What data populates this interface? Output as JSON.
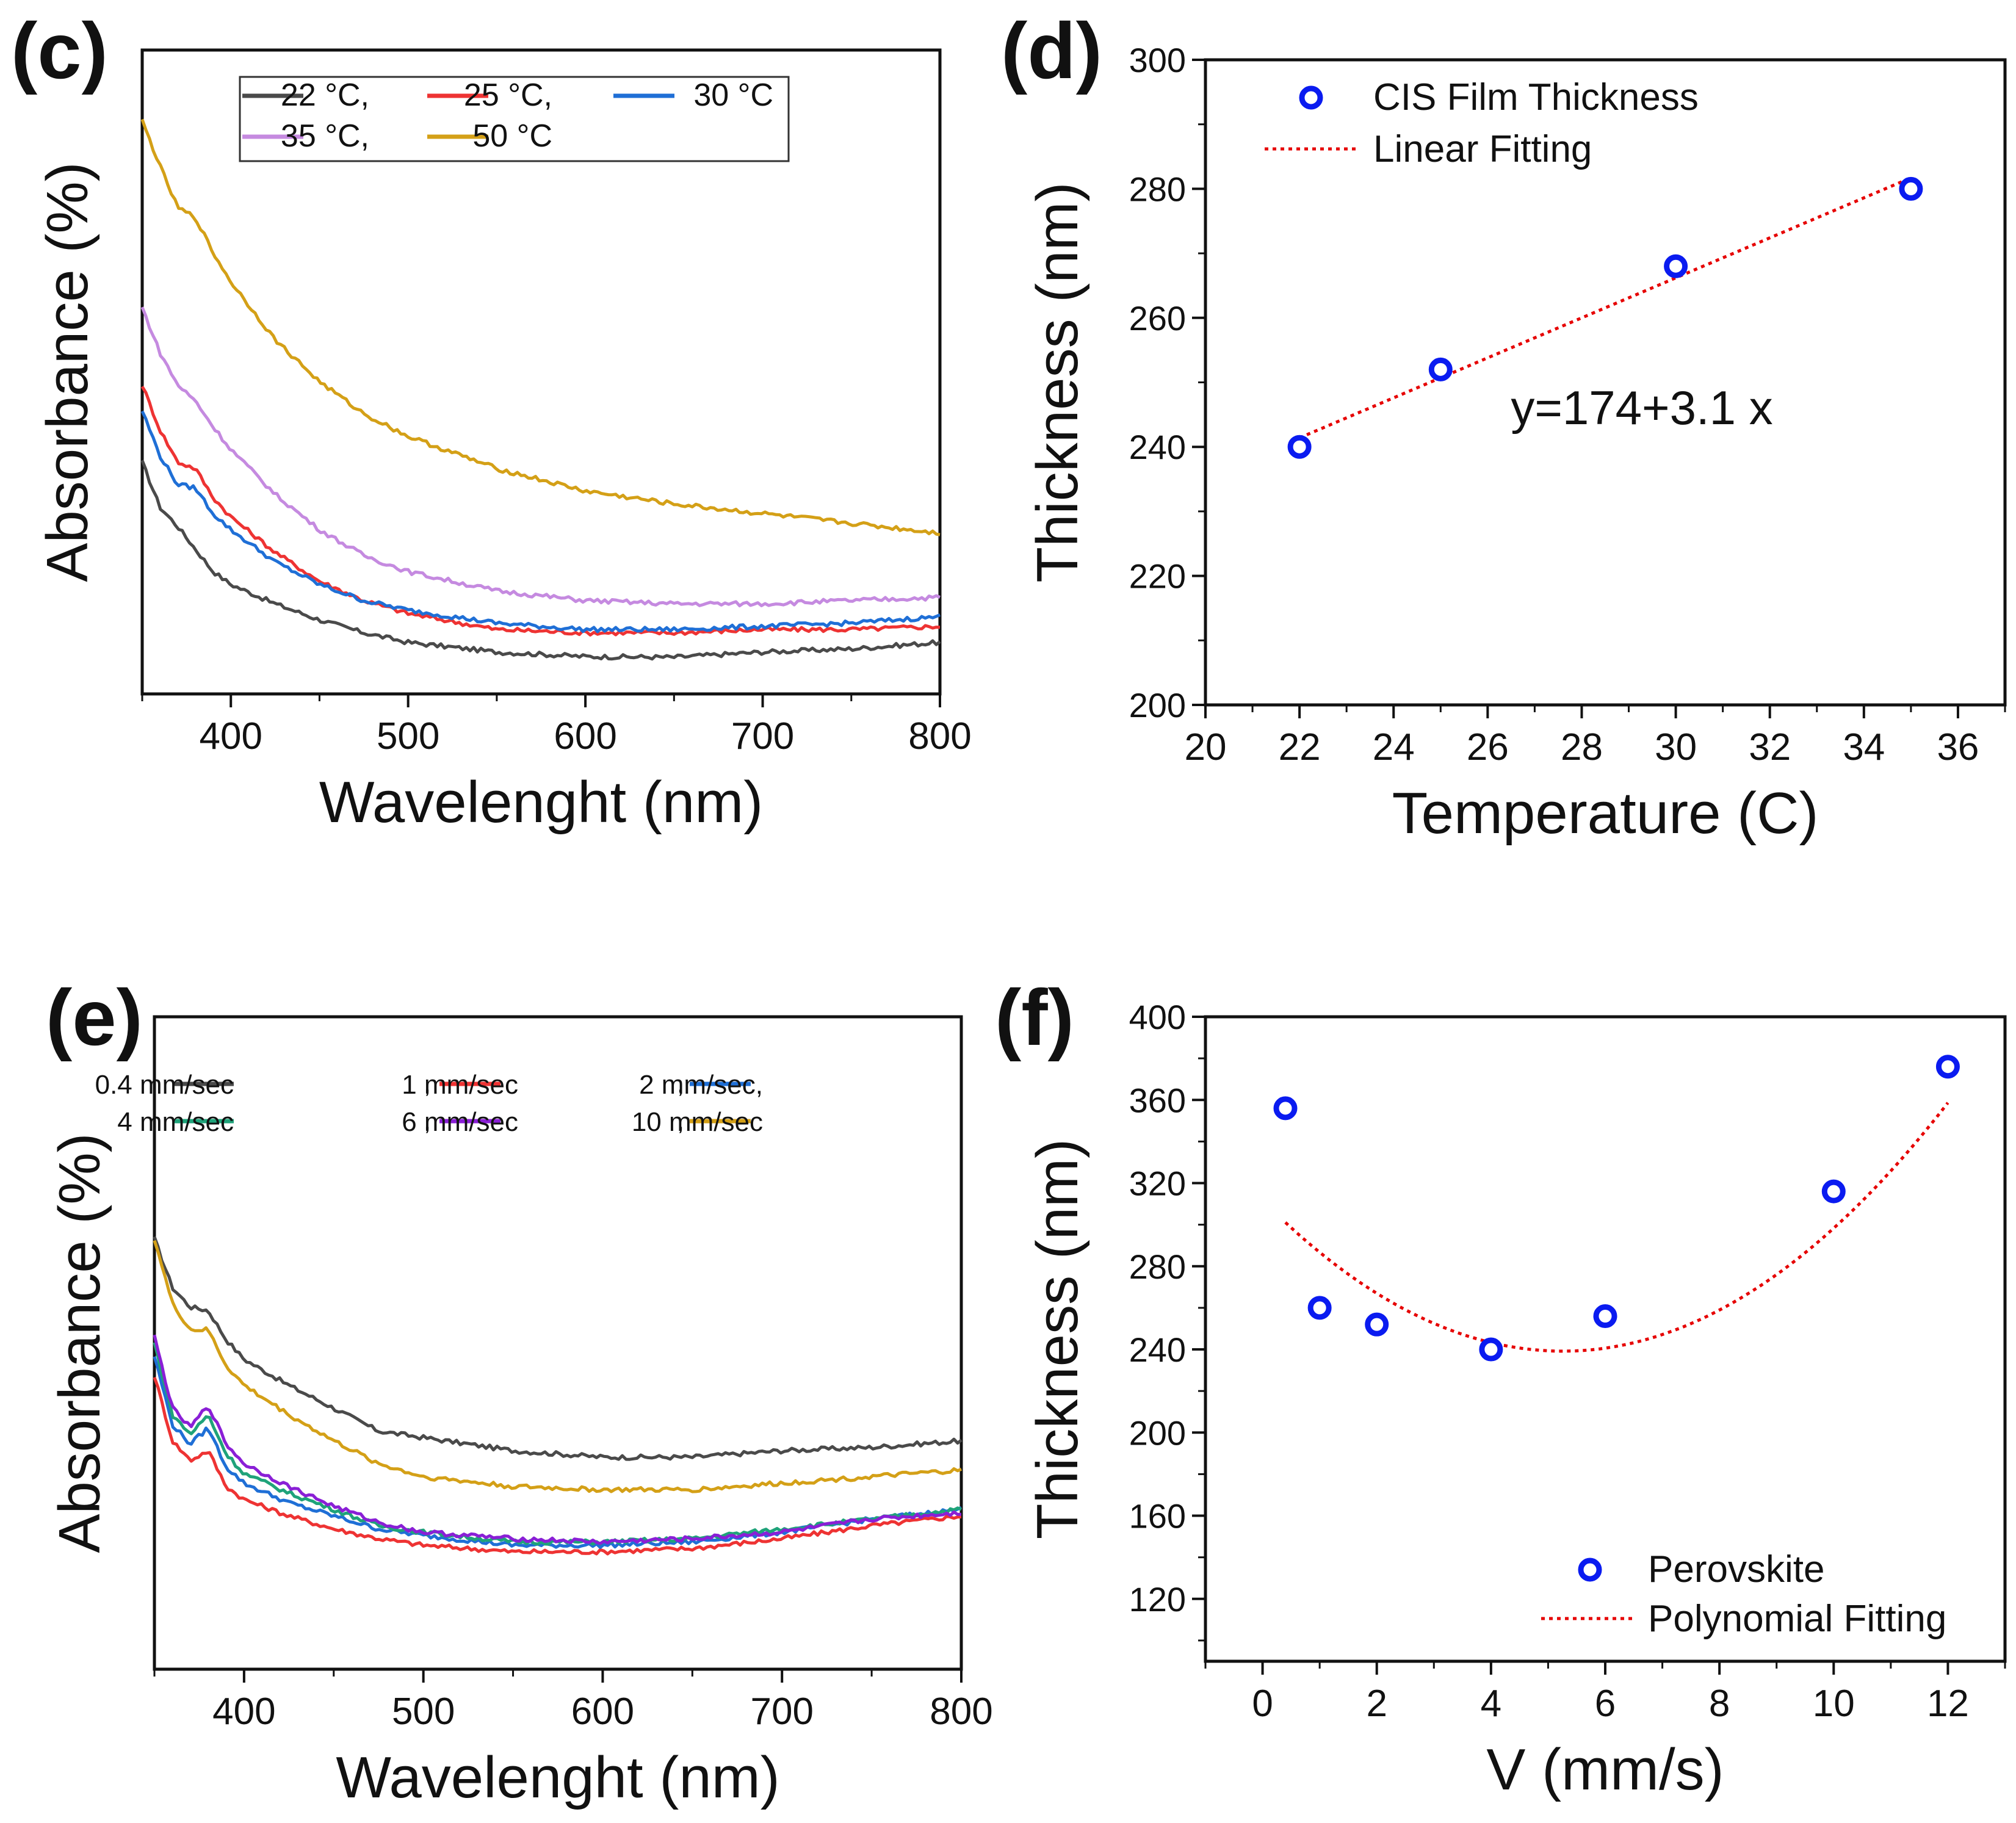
{
  "figure": {
    "panels": [
      "(c)",
      "(d)",
      "(e)",
      "(f)"
    ]
  },
  "chart_data": [
    {
      "panel": "(c)",
      "type": "line",
      "title": "",
      "xlabel": "Wavelenght (nm)",
      "ylabel": "Absorbance (%)",
      "xlim": [
        350,
        800
      ],
      "ylim": [
        0,
        100
      ],
      "x_ticks": [
        400,
        500,
        600,
        700,
        800
      ],
      "y_ticks_shown": false,
      "grid": false,
      "legend_position": "top-center",
      "legend_rows": [
        [
          {
            "label": "22 °C,",
            "series": 0
          },
          {
            "label": "25 °C,",
            "series": 1
          },
          {
            "label": "30 °C",
            "series": 2
          }
        ],
        [
          {
            "label": "35 °C,",
            "series": 3
          },
          {
            "label": "50 °C",
            "series": 4
          }
        ]
      ],
      "x": [
        350,
        360,
        370,
        380,
        390,
        400,
        425,
        450,
        475,
        500,
        550,
        600,
        650,
        700,
        750,
        800
      ],
      "series": [
        {
          "name": "22 °C",
          "color": "#4a4a4a",
          "values": [
            36.0,
            29.0,
            26.0,
            22.5,
            19.0,
            17.0,
            14.0,
            11.5,
            9.5,
            8.0,
            6.5,
            5.8,
            5.7,
            6.5,
            7.0,
            8.0
          ]
        },
        {
          "name": "25 °C",
          "color": "#ee3333",
          "values": [
            48.0,
            41.0,
            36.0,
            35.0,
            30.5,
            27.5,
            22.0,
            17.5,
            14.5,
            12.5,
            10.0,
            9.5,
            9.5,
            10.0,
            10.0,
            10.5
          ]
        },
        {
          "name": "30 °C",
          "color": "#1f6fd6",
          "values": [
            44.0,
            37.0,
            32.5,
            32.0,
            28.0,
            25.5,
            20.5,
            17.0,
            14.5,
            13.0,
            11.0,
            10.0,
            10.0,
            10.5,
            11.0,
            12.0
          ]
        },
        {
          "name": "35 °C",
          "color": "#c58ae0",
          "values": [
            60.0,
            53.0,
            48.0,
            45.5,
            41.5,
            38.0,
            31.0,
            25.5,
            21.5,
            19.0,
            16.0,
            14.5,
            14.0,
            14.0,
            14.5,
            15.0
          ]
        },
        {
          "name": "50 °C",
          "color": "#d4a017",
          "values": [
            89.0,
            82.0,
            75.5,
            74.0,
            68.5,
            64.0,
            55.0,
            48.5,
            43.5,
            40.0,
            35.0,
            31.5,
            29.5,
            28.0,
            26.5,
            25.0
          ]
        }
      ]
    },
    {
      "panel": "(d)",
      "type": "scatter",
      "title": "",
      "xlabel": "Temperature (C)",
      "ylabel": "Thickness (nm)",
      "xlim": [
        20,
        37
      ],
      "ylim": [
        200,
        300
      ],
      "x_ticks": [
        20,
        22,
        24,
        26,
        28,
        30,
        32,
        34,
        36
      ],
      "y_ticks": [
        200,
        220,
        240,
        260,
        280,
        300
      ],
      "grid": false,
      "legend_position": "top-left",
      "points": {
        "name": "CIS Film Thickness",
        "color": "#0a1bf0",
        "x": [
          22,
          25,
          30,
          35
        ],
        "y": [
          240,
          252,
          268,
          280
        ]
      },
      "fit": {
        "name": "Linear Fitting",
        "color": "#e60000",
        "style": "dotted",
        "x": [
          22,
          35
        ],
        "y": [
          241.4,
          281.7
        ]
      },
      "annotation": "y=174+3.1 x"
    },
    {
      "panel": "(e)",
      "type": "line",
      "title": "",
      "xlabel": "Wavelenght (nm)",
      "ylabel": "Absorbance (%)",
      "xlim": [
        350,
        800
      ],
      "ylim": [
        0,
        100
      ],
      "x_ticks": [
        400,
        500,
        600,
        700,
        800
      ],
      "y_ticks_shown": false,
      "grid": false,
      "legend_position": "top",
      "legend_rows": [
        [
          {
            "label": "0.4 mm/sec",
            "series": 0
          },
          {
            "label": ",",
            "series": null
          },
          {
            "label": "1 mm/sec",
            "series": 1
          },
          {
            "label": ",",
            "series": null
          },
          {
            "label": "2 mm/sec,",
            "series": 2
          }
        ],
        [
          {
            "label": "4 mm/sec",
            "series": 3
          },
          {
            "label": ",",
            "series": null
          },
          {
            "label": "6 mm/sec",
            "series": 4
          },
          {
            "label": ",",
            "series": null
          },
          {
            "label": "10 mm/sec",
            "series": 5
          }
        ]
      ],
      "x": [
        350,
        360,
        370,
        380,
        390,
        400,
        425,
        450,
        475,
        500,
        550,
        600,
        650,
        700,
        750,
        800
      ],
      "series": [
        {
          "name": "0.4 mm/sec",
          "color": "#4a4a4a",
          "values": [
            66.0,
            58.5,
            55.5,
            55.0,
            50.5,
            47.5,
            43.5,
            40.0,
            36.5,
            35.5,
            33.5,
            32.5,
            32.5,
            33.5,
            34.0,
            35.0
          ]
        },
        {
          "name": "1 mm/sec",
          "color": "#ee3333",
          "values": [
            45.0,
            35.0,
            32.0,
            33.5,
            28.0,
            26.0,
            23.5,
            21.5,
            20.0,
            19.0,
            18.0,
            18.0,
            18.5,
            20.0,
            22.0,
            23.5
          ]
        },
        {
          "name": "2 mm/sec,",
          "color": "#1f6fd6",
          "values": [
            48.0,
            37.5,
            34.5,
            37.0,
            31.0,
            28.5,
            25.5,
            23.5,
            21.5,
            20.5,
            19.0,
            19.0,
            19.5,
            21.0,
            23.0,
            24.5
          ]
        },
        {
          "name": "4 mm/sec",
          "color": "#1fa37a",
          "values": [
            50.0,
            39.0,
            36.0,
            39.0,
            33.0,
            30.0,
            27.0,
            24.5,
            22.0,
            21.0,
            19.5,
            19.5,
            20.0,
            21.5,
            23.0,
            24.5
          ]
        },
        {
          "name": "6 mm/sec",
          "color": "#8a1fd6",
          "values": [
            51.0,
            40.0,
            37.0,
            40.5,
            34.5,
            31.5,
            28.0,
            25.0,
            22.5,
            21.0,
            20.0,
            19.5,
            20.0,
            21.0,
            23.0,
            24.0
          ]
        },
        {
          "name": "10 mm/sec",
          "color": "#d4a017",
          "values": [
            66.0,
            56.0,
            52.0,
            52.0,
            46.5,
            43.5,
            39.0,
            35.0,
            31.5,
            29.5,
            28.0,
            27.5,
            27.5,
            28.5,
            29.5,
            30.5
          ]
        }
      ]
    },
    {
      "panel": "(f)",
      "type": "scatter",
      "title": "",
      "xlabel": "V (mm/s)",
      "ylabel": "Thickness (nm)",
      "xlim": [
        -1,
        13
      ],
      "ylim": [
        90,
        400
      ],
      "x_ticks": [
        0,
        2,
        4,
        6,
        8,
        10,
        12
      ],
      "y_ticks": [
        120,
        160,
        200,
        240,
        280,
        320,
        360,
        400
      ],
      "grid": false,
      "legend_position": "bottom-right",
      "points": {
        "name": "Perovskite",
        "color": "#0a1bf0",
        "x": [
          0.4,
          1,
          2,
          4,
          6,
          10,
          12
        ],
        "y": [
          356,
          260,
          252,
          240,
          256,
          316,
          376
        ]
      },
      "fit": {
        "name": "Polynomial Fitting",
        "color": "#e60000",
        "style": "dotted",
        "quadratic": [
          311.68,
          -27.6,
          2.626
        ],
        "x_range": [
          0.4,
          12
        ]
      }
    }
  ]
}
